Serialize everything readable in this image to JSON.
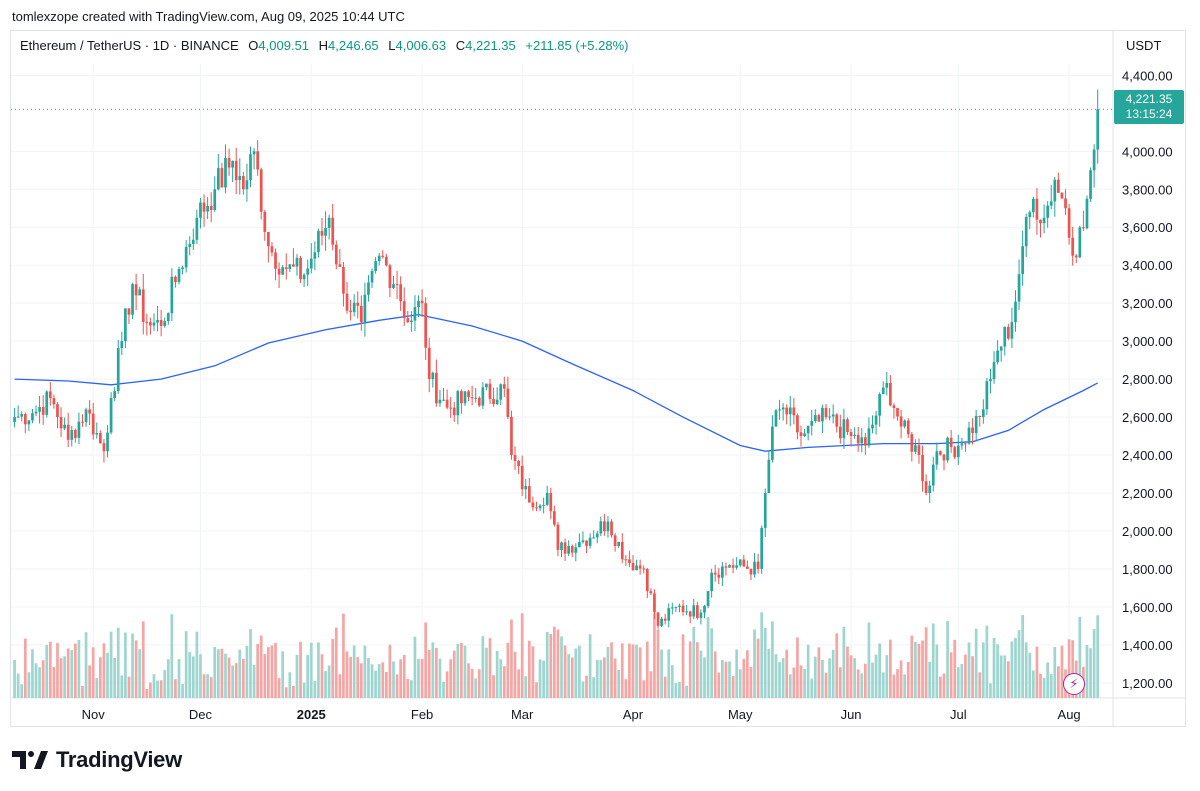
{
  "header": {
    "text": "tomlexzope created with TradingView.com, Aug 09, 2025 10:44 UTC"
  },
  "legend": {
    "symbol": "Ethereum / TetherUS · 1D · BINANCE",
    "o_label": "O",
    "o": "4,009.51",
    "h_label": "H",
    "h": "4,246.65",
    "l_label": "L",
    "l": "4,006.63",
    "c_label": "C",
    "c": "4,221.35",
    "change": "+211.85 (+5.28%)"
  },
  "price_axis": {
    "currency": "USDT"
  },
  "last_price": {
    "value": "4,221.35",
    "countdown": "13:15:24"
  },
  "brand": {
    "name": "TradingView",
    "logo": "tradingview-logo-icon"
  },
  "alert_icon": "lightning-bolt-icon",
  "colors": {
    "up": "#26a69a",
    "down": "#ef5350",
    "ma": "#2962ff",
    "vol_up": "#9ed6cf",
    "vol_down": "#f5a6a4",
    "grid": "#f0f3fa"
  },
  "chart_data": {
    "type": "candlestick",
    "series": "ETH/USDT daily OHLC with moving average and volume",
    "yticks": [
      "4,400.00",
      "4,000.00",
      "3,800.00",
      "3,600.00",
      "3,400.00",
      "3,200.00",
      "3,000.00",
      "2,800.00",
      "2,600.00",
      "2,400.00",
      "2,200.00",
      "2,000.00",
      "1,800.00",
      "1,600.00",
      "1,400.00",
      "1,200.00"
    ],
    "ylim": [
      1120,
      4460
    ],
    "xticks": [
      {
        "label": "Nov",
        "date": "2024-11-01",
        "bold": false
      },
      {
        "label": "Dec",
        "date": "2024-12-01",
        "bold": false
      },
      {
        "label": "2025",
        "date": "2025-01-01",
        "bold": true
      },
      {
        "label": "Feb",
        "date": "2025-02-01",
        "bold": false
      },
      {
        "label": "Mar",
        "date": "2025-03-01",
        "bold": false
      },
      {
        "label": "Apr",
        "date": "2025-04-01",
        "bold": false
      },
      {
        "label": "May",
        "date": "2025-05-01",
        "bold": false
      },
      {
        "label": "Jun",
        "date": "2025-06-01",
        "bold": false
      },
      {
        "label": "Jul",
        "date": "2025-07-01",
        "bold": false
      },
      {
        "label": "Aug",
        "date": "2025-08-01",
        "bold": false
      }
    ],
    "last_price": 4221.35,
    "closes": [
      {
        "date": "2024-10-10",
        "close": 2600
      },
      {
        "date": "2024-10-15",
        "close": 2620
      },
      {
        "date": "2024-10-20",
        "close": 2700
      },
      {
        "date": "2024-10-25",
        "close": 2480
      },
      {
        "date": "2024-10-30",
        "close": 2640
      },
      {
        "date": "2024-11-04",
        "close": 2420
      },
      {
        "date": "2024-11-06",
        "close": 2700
      },
      {
        "date": "2024-11-09",
        "close": 3000
      },
      {
        "date": "2024-11-12",
        "close": 3300
      },
      {
        "date": "2024-11-16",
        "close": 3100
      },
      {
        "date": "2024-11-20",
        "close": 3080
      },
      {
        "date": "2024-11-25",
        "close": 3380
      },
      {
        "date": "2024-11-30",
        "close": 3650
      },
      {
        "date": "2024-12-05",
        "close": 3800
      },
      {
        "date": "2024-12-10",
        "close": 3950
      },
      {
        "date": "2024-12-13",
        "close": 3800
      },
      {
        "date": "2024-12-16",
        "close": 4000
      },
      {
        "date": "2024-12-20",
        "close": 3500
      },
      {
        "date": "2024-12-25",
        "close": 3380
      },
      {
        "date": "2024-12-30",
        "close": 3350
      },
      {
        "date": "2025-01-06",
        "close": 3650
      },
      {
        "date": "2025-01-10",
        "close": 3250
      },
      {
        "date": "2025-01-15",
        "close": 3100
      },
      {
        "date": "2025-01-20",
        "close": 3450
      },
      {
        "date": "2025-01-25",
        "close": 3300
      },
      {
        "date": "2025-01-28",
        "close": 3100
      },
      {
        "date": "2025-02-01",
        "close": 3200
      },
      {
        "date": "2025-02-03",
        "close": 2800
      },
      {
        "date": "2025-02-08",
        "close": 2650
      },
      {
        "date": "2025-02-15",
        "close": 2700
      },
      {
        "date": "2025-02-24",
        "close": 2750
      },
      {
        "date": "2025-02-26",
        "close": 2400
      },
      {
        "date": "2025-03-03",
        "close": 2150
      },
      {
        "date": "2025-03-08",
        "close": 2200
      },
      {
        "date": "2025-03-11",
        "close": 1900
      },
      {
        "date": "2025-03-18",
        "close": 1950
      },
      {
        "date": "2025-03-25",
        "close": 2050
      },
      {
        "date": "2025-03-30",
        "close": 1850
      },
      {
        "date": "2025-04-04",
        "close": 1800
      },
      {
        "date": "2025-04-08",
        "close": 1500
      },
      {
        "date": "2025-04-13",
        "close": 1600
      },
      {
        "date": "2025-04-20",
        "close": 1570
      },
      {
        "date": "2025-04-23",
        "close": 1780
      },
      {
        "date": "2025-04-28",
        "close": 1820
      },
      {
        "date": "2025-05-06",
        "close": 1800
      },
      {
        "date": "2025-05-08",
        "close": 2200
      },
      {
        "date": "2025-05-10",
        "close": 2550
      },
      {
        "date": "2025-05-13",
        "close": 2650
      },
      {
        "date": "2025-05-18",
        "close": 2500
      },
      {
        "date": "2025-05-25",
        "close": 2600
      },
      {
        "date": "2025-06-01",
        "close": 2500
      },
      {
        "date": "2025-06-05",
        "close": 2450
      },
      {
        "date": "2025-06-11",
        "close": 2780
      },
      {
        "date": "2025-06-15",
        "close": 2550
      },
      {
        "date": "2025-06-20",
        "close": 2400
      },
      {
        "date": "2025-06-22",
        "close": 2200
      },
      {
        "date": "2025-06-25",
        "close": 2420
      },
      {
        "date": "2025-07-01",
        "close": 2450
      },
      {
        "date": "2025-07-07",
        "close": 2600
      },
      {
        "date": "2025-07-10",
        "close": 2800
      },
      {
        "date": "2025-07-12",
        "close": 2950
      },
      {
        "date": "2025-07-16",
        "close": 3100
      },
      {
        "date": "2025-07-19",
        "close": 3500
      },
      {
        "date": "2025-07-22",
        "close": 3750
      },
      {
        "date": "2025-07-25",
        "close": 3650
      },
      {
        "date": "2025-07-28",
        "close": 3850
      },
      {
        "date": "2025-07-31",
        "close": 3700
      },
      {
        "date": "2025-08-02",
        "close": 3450
      },
      {
        "date": "2025-08-04",
        "close": 3600
      },
      {
        "date": "2025-08-06",
        "close": 3750
      },
      {
        "date": "2025-08-07",
        "close": 3900
      },
      {
        "date": "2025-08-08",
        "close": 4009.51
      },
      {
        "date": "2025-08-09",
        "close": 4221.35
      }
    ],
    "moving_average": [
      {
        "date": "2024-10-10",
        "value": 2800
      },
      {
        "date": "2024-10-25",
        "value": 2790
      },
      {
        "date": "2024-11-06",
        "value": 2770
      },
      {
        "date": "2024-11-20",
        "value": 2800
      },
      {
        "date": "2024-12-05",
        "value": 2870
      },
      {
        "date": "2024-12-20",
        "value": 2990
      },
      {
        "date": "2025-01-05",
        "value": 3060
      },
      {
        "date": "2025-01-20",
        "value": 3110
      },
      {
        "date": "2025-01-31",
        "value": 3140
      },
      {
        "date": "2025-02-15",
        "value": 3080
      },
      {
        "date": "2025-03-01",
        "value": 3000
      },
      {
        "date": "2025-03-15",
        "value": 2880
      },
      {
        "date": "2025-04-01",
        "value": 2740
      },
      {
        "date": "2025-04-15",
        "value": 2600
      },
      {
        "date": "2025-05-01",
        "value": 2450
      },
      {
        "date": "2025-05-08",
        "value": 2420
      },
      {
        "date": "2025-05-20",
        "value": 2440
      },
      {
        "date": "2025-06-10",
        "value": 2460
      },
      {
        "date": "2025-06-25",
        "value": 2460
      },
      {
        "date": "2025-07-05",
        "value": 2470
      },
      {
        "date": "2025-07-15",
        "value": 2530
      },
      {
        "date": "2025-07-25",
        "value": 2640
      },
      {
        "date": "2025-08-05",
        "value": 2740
      },
      {
        "date": "2025-08-09",
        "value": 2780
      }
    ]
  }
}
